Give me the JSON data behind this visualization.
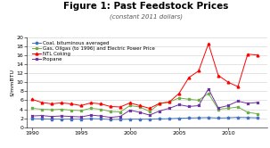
{
  "title": "Figure 1: Past Feedstock Prices",
  "subtitle": "(constant 2011 dollars)",
  "ylabel": "$/mmBTU",
  "ylim": [
    0,
    20
  ],
  "yticks": [
    0,
    2,
    4,
    6,
    8,
    10,
    12,
    14,
    16,
    18,
    20
  ],
  "xticks": [
    1990,
    1995,
    2000,
    2005,
    2010
  ],
  "xlim": [
    1989.5,
    2014
  ],
  "years": [
    1990,
    1991,
    1992,
    1993,
    1994,
    1995,
    1996,
    1997,
    1998,
    1999,
    2000,
    2001,
    2002,
    2003,
    2004,
    2005,
    2006,
    2007,
    2008,
    2009,
    2010,
    2011,
    2012,
    2013
  ],
  "coal": [
    1.9,
    1.85,
    1.8,
    1.8,
    1.8,
    1.8,
    1.9,
    1.85,
    1.75,
    1.75,
    1.8,
    1.8,
    1.8,
    1.85,
    1.9,
    2.0,
    2.05,
    2.1,
    2.15,
    2.05,
    2.1,
    2.2,
    2.15,
    2.1
  ],
  "gas": [
    4.2,
    4.0,
    3.9,
    4.0,
    3.8,
    3.7,
    4.2,
    4.0,
    3.5,
    3.4,
    4.8,
    4.5,
    3.5,
    5.2,
    5.6,
    6.5,
    6.2,
    6.0,
    7.5,
    4.0,
    4.2,
    4.5,
    3.3,
    3.0
  ],
  "ngl": [
    6.2,
    5.5,
    5.2,
    5.4,
    5.2,
    4.8,
    5.4,
    5.2,
    4.6,
    4.5,
    5.4,
    4.8,
    4.2,
    5.3,
    5.6,
    7.5,
    11.0,
    12.5,
    18.5,
    11.5,
    10.0,
    9.0,
    16.2,
    16.0
  ],
  "propane": [
    2.5,
    2.6,
    2.4,
    2.5,
    2.4,
    2.3,
    2.7,
    2.5,
    2.2,
    2.4,
    3.8,
    3.3,
    2.7,
    3.6,
    4.2,
    5.0,
    4.6,
    4.8,
    8.5,
    4.3,
    4.8,
    5.8,
    5.3,
    5.5
  ],
  "coal_color": "#4472c4",
  "gas_color": "#70ad47",
  "ngl_color": "#ff0000",
  "propane_color": "#7030a0",
  "coal_label": "Coal, bituminous averaged",
  "gas_label": "Gas, Oilgas (to 1996) and Electric Power Price",
  "ngl_label": "NTL Coking",
  "propane_label": "Propane",
  "title_fontsize": 7.5,
  "subtitle_fontsize": 5.0,
  "legend_fontsize": 4.0,
  "ylabel_fontsize": 4.5,
  "tick_fontsize": 4.5,
  "lw": 0.7,
  "ms": 2.0
}
